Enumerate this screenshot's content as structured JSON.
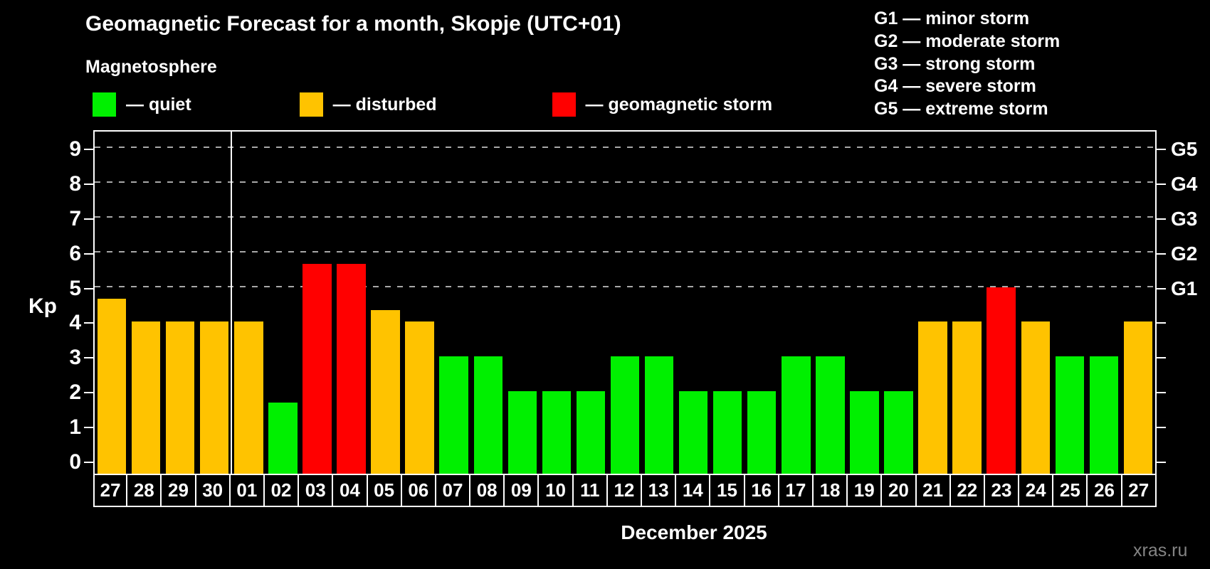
{
  "header": {
    "title": "Geomagnetic Forecast for a month, Skopje (UTC+01)",
    "subtitle": "Magnetosphere",
    "legend_items": [
      {
        "status": "quiet",
        "label": "— quiet"
      },
      {
        "status": "disturbed",
        "label": "— disturbed"
      },
      {
        "status": "storm",
        "label": "— geomagnetic storm"
      }
    ],
    "storm_scale_legend": [
      "G1 — minor storm",
      "G2 — moderate storm",
      "G3 — strong storm",
      "G4 — severe storm",
      "G5 — extreme storm"
    ]
  },
  "palette": {
    "quiet": "#00f000",
    "disturbed": "#ffc300",
    "storm": "#ff0000",
    "grid": "#a8a8a8",
    "axis": "#ffffff",
    "watermark": "#848484"
  },
  "chart_data": {
    "type": "bar",
    "title": "Geomagnetic Forecast for a month, Skopje (UTC+01)",
    "ylabel": "Kp",
    "xlabel": "December 2025",
    "ylim": [
      0,
      9.5
    ],
    "yticks": [
      0,
      1,
      2,
      3,
      4,
      5,
      6,
      7,
      8,
      9
    ],
    "grid": "dashed horizontal lines at Kp 5 to 9 (G1 to G5), legend top-right",
    "right_axis_labels": [
      {
        "label": "G1",
        "kp": 5
      },
      {
        "label": "G2",
        "kp": 6
      },
      {
        "label": "G3",
        "kp": 7
      },
      {
        "label": "G4",
        "kp": 8
      },
      {
        "label": "G5",
        "kp": 9
      }
    ],
    "categories": [
      "27",
      "28",
      "29",
      "30",
      "01",
      "02",
      "03",
      "04",
      "05",
      "06",
      "07",
      "08",
      "09",
      "10",
      "11",
      "12",
      "13",
      "14",
      "15",
      "16",
      "17",
      "18",
      "19",
      "20",
      "21",
      "22",
      "23",
      "24",
      "25",
      "26",
      "27"
    ],
    "values": [
      4.67,
      4,
      4,
      4,
      4,
      1.67,
      5.67,
      5.67,
      4.33,
      4,
      3,
      3,
      2,
      2,
      2,
      3,
      3,
      2,
      2,
      2,
      3,
      3,
      2,
      2,
      4,
      4,
      5,
      4,
      3,
      3,
      4
    ],
    "status": [
      "disturbed",
      "disturbed",
      "disturbed",
      "disturbed",
      "disturbed",
      "quiet",
      "storm",
      "storm",
      "disturbed",
      "disturbed",
      "quiet",
      "quiet",
      "quiet",
      "quiet",
      "quiet",
      "quiet",
      "quiet",
      "quiet",
      "quiet",
      "quiet",
      "quiet",
      "quiet",
      "quiet",
      "quiet",
      "disturbed",
      "disturbed",
      "storm",
      "disturbed",
      "quiet",
      "quiet",
      "disturbed"
    ],
    "month_separator_after_index": 3
  },
  "footer": {
    "month_label": "December 2025",
    "watermark": "xras.ru"
  }
}
